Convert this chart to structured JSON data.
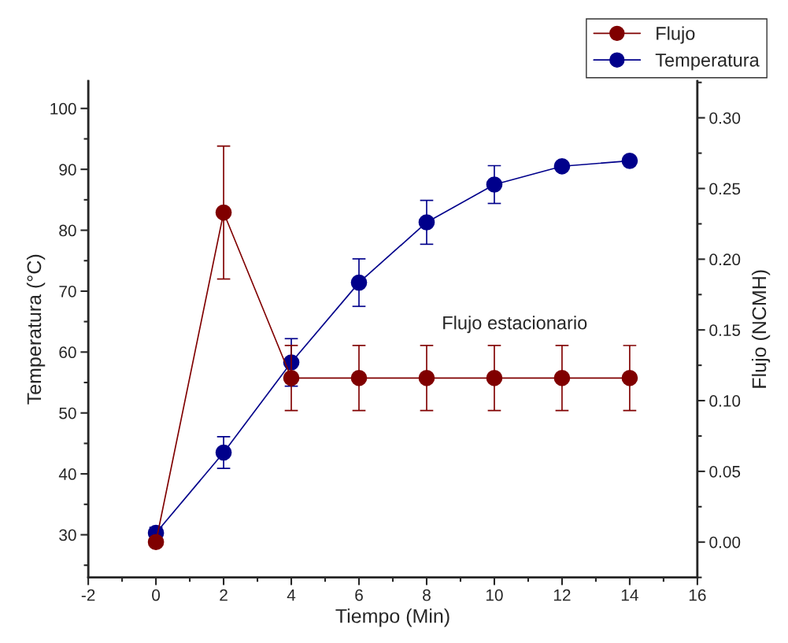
{
  "chart_data": {
    "type": "line",
    "xlabel": "Tiempo (Min)",
    "ylabel": "Temperatura (°C)",
    "y2label": "Flujo (NCMH)",
    "x": [
      0,
      2,
      4,
      6,
      8,
      10,
      12,
      14
    ],
    "series": [
      {
        "name": "Flujo",
        "color": "#800000",
        "axis": "y2",
        "values": [
          0.0,
          0.233,
          0.116,
          0.116,
          0.116,
          0.116,
          0.116,
          0.116
        ],
        "errors": [
          null,
          0.047,
          0.023,
          0.023,
          0.023,
          0.023,
          0.023,
          0.023
        ]
      },
      {
        "name": "Temperatura",
        "color": "#00008b",
        "axis": "y",
        "values": [
          30.3,
          43.5,
          58.3,
          71.4,
          81.3,
          87.5,
          90.5,
          91.4
        ],
        "errors": [
          0.9,
          2.6,
          3.9,
          3.9,
          3.6,
          3.1,
          null,
          null
        ]
      }
    ],
    "xlim": [
      -2,
      16
    ],
    "xticks": [
      -2,
      0,
      2,
      4,
      6,
      8,
      10,
      12,
      14,
      16
    ],
    "ylim": [
      23.0,
      104.5
    ],
    "yticks": [
      30,
      40,
      50,
      60,
      70,
      80,
      90,
      100
    ],
    "y2lim": [
      -0.025,
      0.326
    ],
    "y2ticks": [
      {
        "value": 0.0,
        "label": "0.00"
      },
      {
        "value": 0.05,
        "label": "0.05"
      },
      {
        "value": 0.1,
        "label": "0.10"
      },
      {
        "value": 0.15,
        "label": "0.15"
      },
      {
        "value": 0.2,
        "label": "0.20"
      },
      {
        "value": 0.25,
        "label": "0.25"
      },
      {
        "value": 0.3,
        "label": "0.30"
      }
    ],
    "annotations": [
      "Flujo estacionario"
    ],
    "marker": "circle",
    "line_style": "solid",
    "grid": false,
    "legend": "top right"
  }
}
